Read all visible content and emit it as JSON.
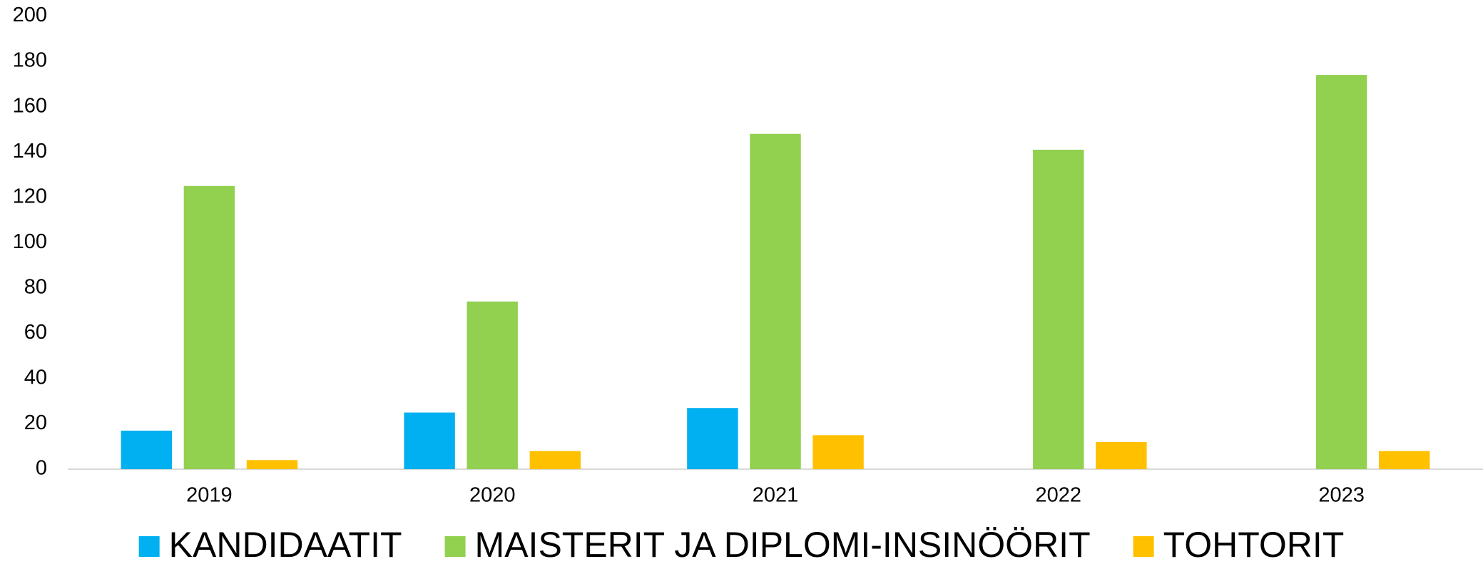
{
  "chart_data": {
    "type": "bar",
    "categories": [
      "2019",
      "2020",
      "2021",
      "2022",
      "2023"
    ],
    "series": [
      {
        "name": "KANDIDAATIT",
        "color": "#00b0f0",
        "values": [
          17,
          25,
          27,
          null,
          null
        ]
      },
      {
        "name": "MAISTERIT JA DIPLOMI-INSINÖÖRIT",
        "color": "#92d050",
        "values": [
          125,
          74,
          148,
          141,
          174
        ]
      },
      {
        "name": "TOHTORIT",
        "color": "#ffc000",
        "values": [
          4,
          8,
          15,
          12,
          8
        ]
      }
    ],
    "ylim": [
      0,
      200
    ],
    "yticks": [
      0,
      20,
      40,
      60,
      80,
      100,
      120,
      140,
      160,
      180,
      200
    ],
    "grid": false,
    "legend": "bottom"
  }
}
